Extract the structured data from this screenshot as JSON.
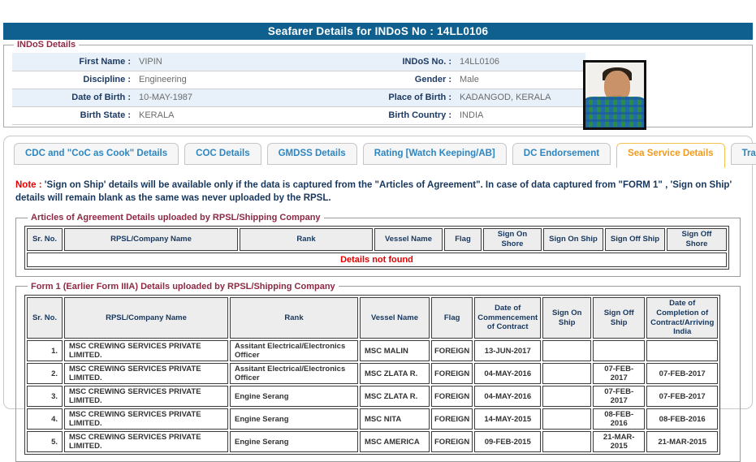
{
  "page": {
    "title": "Seafarer Details for INDoS No : 14LL0106"
  },
  "colors": {
    "title_bar": "#0f608f",
    "legend_maroon": "#8e2944",
    "tab_text": "#2e86c1",
    "tab_active_text": "#f29b1d",
    "tab_active_border": "#f2c24e",
    "note_red": "#e60000",
    "note_navy": "#17375e",
    "row_alt_blue": "#e8f1fa"
  },
  "indos": {
    "legend": "INDoS Details",
    "rows": [
      {
        "l1": "First Name :",
        "v1": "VIPIN",
        "l2": "INDoS No. :",
        "v2": "14LL0106"
      },
      {
        "l1": "Discipline :",
        "v1": "Engineering",
        "l2": "Gender :",
        "v2": "Male"
      },
      {
        "l1": "Date of Birth :",
        "v1": "10-MAY-1987",
        "l2": "Place of Birth :",
        "v2": "KADANGOD, KERALA"
      },
      {
        "l1": "Birth State :",
        "v1": "KERALA",
        "l2": "Birth Country :",
        "v2": "INDIA"
      }
    ]
  },
  "tabs": [
    {
      "label": "CDC and \"CoC as Cook\" Details",
      "active": false
    },
    {
      "label": "COC Details",
      "active": false
    },
    {
      "label": "GMDSS Details",
      "active": false
    },
    {
      "label": "Rating [Watch Keeping/AB]",
      "active": false
    },
    {
      "label": "DC Endorsement",
      "active": false
    },
    {
      "label": "Sea Service Details",
      "active": true
    },
    {
      "label": "Training Details",
      "active": false
    }
  ],
  "note": {
    "prefix": "Note :",
    "text": " 'Sign on Ship' details will be available only if the data is captured from the \"Articles of Agreement\". In case of data captured from \"FORM 1\" , 'Sign on Ship' details will remain blank as the same was never uploaded by the RPSL."
  },
  "articles_table": {
    "legend": "Articles of Agreement Details uploaded by RPSL/Shipping Company",
    "headers": [
      "Sr. No.",
      "RPSL/Company Name",
      "Rank",
      "Vessel Name",
      "Flag",
      "Sign On Shore",
      "Sign On Ship",
      "Sign Off Ship",
      "Sign Off Shore"
    ],
    "empty_message": "Details not found"
  },
  "form1_table": {
    "legend": "Form 1 (Earlier Form IIIA) Details uploaded by RPSL/Shipping Company",
    "headers": [
      "Sr. No.",
      "RPSL/Company Name",
      "Rank",
      "Vessel Name",
      "Flag",
      "Date of Commencement of Contract",
      "Sign On Ship",
      "Sign Off Ship",
      "Date of Completion of Contract/Arriving India"
    ],
    "rows": [
      [
        "1.",
        "MSC CREWING SERVICES PRIVATE LIMITED.",
        "Assitant Electrical/Electronics Officer",
        "MSC MALIN",
        "FOREIGN",
        "13-JUN-2017",
        "",
        "",
        ""
      ],
      [
        "2.",
        "MSC CREWING SERVICES PRIVATE LIMITED.",
        "Assitant Electrical/Electronics Officer",
        "MSC ZLATA R.",
        "FOREIGN",
        "04-MAY-2016",
        "",
        "07-FEB-2017",
        "07-FEB-2017"
      ],
      [
        "3.",
        "MSC CREWING SERVICES PRIVATE LIMITED.",
        "Engine Serang",
        "MSC ZLATA R.",
        "FOREIGN",
        "04-MAY-2016",
        "",
        "07-FEB-2017",
        "07-FEB-2017"
      ],
      [
        "4.",
        "MSC CREWING SERVICES PRIVATE LIMITED.",
        "Engine Serang",
        "MSC NITA",
        "FOREIGN",
        "14-MAY-2015",
        "",
        "08-FEB-2016",
        "08-FEB-2016"
      ],
      [
        "5.",
        "MSC CREWING SERVICES PRIVATE LIMITED.",
        "Engine Serang",
        "MSC AMERICA",
        "FOREIGN",
        "09-FEB-2015",
        "",
        "21-MAR-2015",
        "21-MAR-2015"
      ]
    ]
  }
}
